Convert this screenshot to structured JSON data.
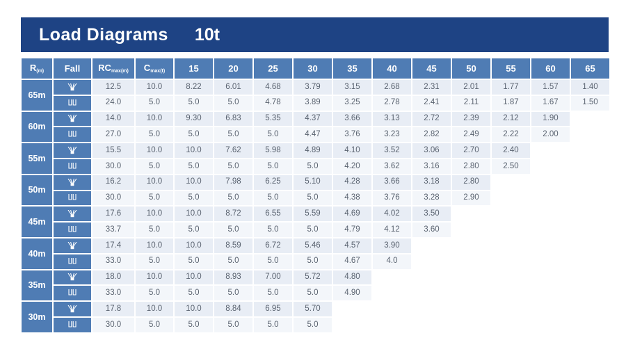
{
  "title": {
    "text": "Load Diagrams",
    "capacity": "10t"
  },
  "colors": {
    "title_bar": "#1e4384",
    "header_blue": "#4f7cb4",
    "row_light": "#e8edf5",
    "row_lighter": "#f3f6fa",
    "data_text": "#5a6370"
  },
  "table": {
    "headers": {
      "radius": {
        "main": "R",
        "sub": "(m)"
      },
      "fall": "Fall",
      "rc": {
        "main": "RC",
        "sub": "max(m)"
      },
      "c": {
        "main": "C",
        "sub": "max(t)"
      },
      "radii": [
        "15",
        "20",
        "25",
        "30",
        "35",
        "40",
        "45",
        "50",
        "55",
        "60",
        "65"
      ]
    },
    "rows": [
      {
        "jib": "65m",
        "falls": [
          {
            "icon": "four-fall-icon",
            "rc": "12.5",
            "c": "10.0",
            "values": [
              "8.22",
              "6.01",
              "4.68",
              "3.79",
              "3.15",
              "2.68",
              "2.31",
              "2.01",
              "1.77",
              "1.57",
              "1.40"
            ]
          },
          {
            "icon": "two-fall-icon",
            "rc": "24.0",
            "c": "5.0",
            "values": [
              "5.0",
              "5.0",
              "4.78",
              "3.89",
              "3.25",
              "2.78",
              "2.41",
              "2.11",
              "1.87",
              "1.67",
              "1.50"
            ]
          }
        ]
      },
      {
        "jib": "60m",
        "falls": [
          {
            "icon": "four-fall-icon",
            "rc": "14.0",
            "c": "10.0",
            "values": [
              "9.30",
              "6.83",
              "5.35",
              "4.37",
              "3.66",
              "3.13",
              "2.72",
              "2.39",
              "2.12",
              "1.90"
            ]
          },
          {
            "icon": "two-fall-icon",
            "rc": "27.0",
            "c": "5.0",
            "values": [
              "5.0",
              "5.0",
              "5.0",
              "4.47",
              "3.76",
              "3.23",
              "2.82",
              "2.49",
              "2.22",
              "2.00"
            ]
          }
        ]
      },
      {
        "jib": "55m",
        "falls": [
          {
            "icon": "four-fall-icon",
            "rc": "15.5",
            "c": "10.0",
            "values": [
              "10.0",
              "7.62",
              "5.98",
              "4.89",
              "4.10",
              "3.52",
              "3.06",
              "2.70",
              "2.40"
            ]
          },
          {
            "icon": "two-fall-icon",
            "rc": "30.0",
            "c": "5.0",
            "values": [
              "5.0",
              "5.0",
              "5.0",
              "5.0",
              "4.20",
              "3.62",
              "3.16",
              "2.80",
              "2.50"
            ]
          }
        ]
      },
      {
        "jib": "50m",
        "falls": [
          {
            "icon": "four-fall-icon",
            "rc": "16.2",
            "c": "10.0",
            "values": [
              "10.0",
              "7.98",
              "6.25",
              "5.10",
              "4.28",
              "3.66",
              "3.18",
              "2.80"
            ]
          },
          {
            "icon": "two-fall-icon",
            "rc": "30.0",
            "c": "5.0",
            "values": [
              "5.0",
              "5.0",
              "5.0",
              "5.0",
              "4.38",
              "3.76",
              "3.28",
              "2.90"
            ]
          }
        ]
      },
      {
        "jib": "45m",
        "falls": [
          {
            "icon": "four-fall-icon",
            "rc": "17.6",
            "c": "10.0",
            "values": [
              "10.0",
              "8.72",
              "6.55",
              "5.59",
              "4.69",
              "4.02",
              "3.50"
            ]
          },
          {
            "icon": "two-fall-icon",
            "rc": "33.7",
            "c": "5.0",
            "values": [
              "5.0",
              "5.0",
              "5.0",
              "5.0",
              "4.79",
              "4.12",
              "3.60"
            ]
          }
        ]
      },
      {
        "jib": "40m",
        "falls": [
          {
            "icon": "four-fall-icon",
            "rc": "17.4",
            "c": "10.0",
            "values": [
              "10.0",
              "8.59",
              "6.72",
              "5.46",
              "4.57",
              "3.90"
            ]
          },
          {
            "icon": "two-fall-icon",
            "rc": "33.0",
            "c": "5.0",
            "values": [
              "5.0",
              "5.0",
              "5.0",
              "5.0",
              "4.67",
              "4.0"
            ]
          }
        ]
      },
      {
        "jib": "35m",
        "falls": [
          {
            "icon": "four-fall-icon",
            "rc": "18.0",
            "c": "10.0",
            "values": [
              "10.0",
              "8.93",
              "7.00",
              "5.72",
              "4.80"
            ]
          },
          {
            "icon": "two-fall-icon",
            "rc": "33.0",
            "c": "5.0",
            "values": [
              "5.0",
              "5.0",
              "5.0",
              "5.0",
              "4.90"
            ]
          }
        ]
      },
      {
        "jib": "30m",
        "falls": [
          {
            "icon": "four-fall-icon",
            "rc": "17.8",
            "c": "10.0",
            "values": [
              "10.0",
              "8.84",
              "6.95",
              "5.70"
            ]
          },
          {
            "icon": "two-fall-icon",
            "rc": "30.0",
            "c": "5.0",
            "values": [
              "5.0",
              "5.0",
              "5.0",
              "5.0"
            ]
          }
        ]
      }
    ]
  }
}
